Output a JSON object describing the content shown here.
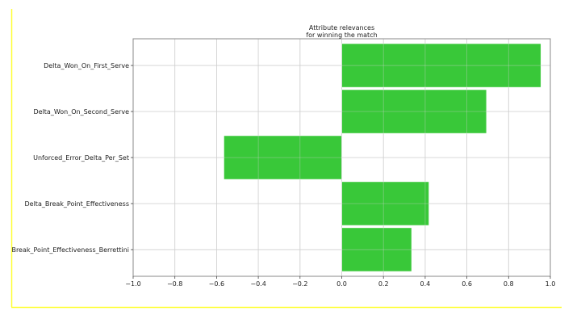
{
  "chart_data": {
    "type": "bar",
    "orientation": "horizontal",
    "title": "Attribute relevances\nfor winning the match",
    "categories": [
      "Delta_Won_On_First_Serve",
      "Delta_Won_On_Second_Serve",
      "Unforced_Error_Delta_Per_Set",
      "Delta_Break_Point_Effectiveness",
      "Break_Point_Effectiveness_Berrettini"
    ],
    "values": [
      0.955,
      0.694,
      -0.565,
      0.418,
      0.335
    ],
    "xlim": [
      -1.0,
      1.0
    ],
    "xticks": [
      "−1.0",
      "−0.8",
      "−0.6",
      "−0.4",
      "−0.2",
      "0.0",
      "0.2",
      "0.4",
      "0.6",
      "0.8",
      "1.0"
    ],
    "xlabel": "",
    "ylabel": "",
    "grid": true,
    "bar_color": "#33c633",
    "frame_color": "#ffff33"
  }
}
